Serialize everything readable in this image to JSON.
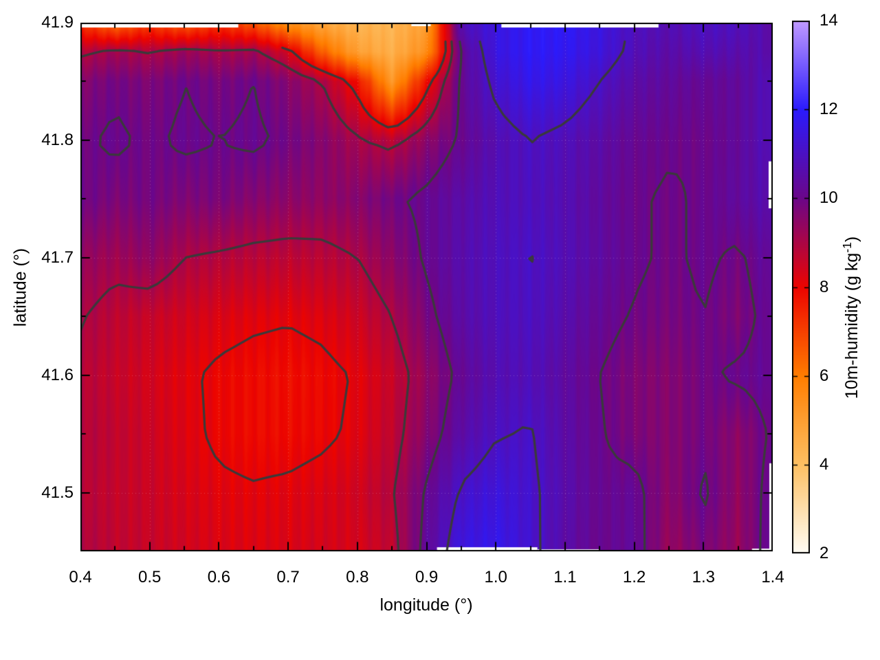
{
  "figure": {
    "background": "#ffffff",
    "border_color": "#000000"
  },
  "chart_data": {
    "type": "heatmap",
    "title": "",
    "xlabel": "longitude (°)",
    "ylabel": "latitude (°)",
    "colorbar_label": "10m-humidity (g kg^-1)",
    "colorbar_label_prefix": "10m-humidity (g kg",
    "colorbar_label_sup": "-1",
    "colorbar_label_suffix": ")",
    "x_range": [
      0.4,
      1.4
    ],
    "y_range": [
      41.45,
      41.9
    ],
    "c_range": [
      2,
      14
    ],
    "x_major_ticks": [
      0.4,
      0.5,
      0.6,
      0.7,
      0.8,
      0.9,
      1.0,
      1.1,
      1.2,
      1.3,
      1.4
    ],
    "x_tick_labels": [
      "0.4",
      "0.5",
      "0.6",
      "0.7",
      "0.8",
      "0.9",
      "1.0",
      "1.1",
      "1.2",
      "1.3",
      "1.4"
    ],
    "x_minor_ticks": [
      0.45,
      0.55,
      0.65,
      0.75,
      0.85,
      0.95,
      1.05,
      1.15,
      1.25,
      1.35
    ],
    "y_major_ticks": [
      41.5,
      41.6,
      41.7,
      41.8,
      41.9
    ],
    "y_tick_labels": [
      "41.5",
      "41.6",
      "41.7",
      "41.8",
      "41.9"
    ],
    "y_minor_ticks": [
      41.45,
      41.55,
      41.65,
      41.75,
      41.85
    ],
    "cb_major_ticks": [
      2,
      4,
      6,
      8,
      10,
      12,
      14
    ],
    "cb_tick_labels": [
      "2",
      "4",
      "6",
      "8",
      "10",
      "12",
      "14"
    ],
    "cb_dash_ticks": [
      4,
      6,
      8,
      10,
      12
    ],
    "grid_on": true,
    "legend_position": "none",
    "palette": [
      {
        "v": 2,
        "c": "#fffdf6"
      },
      {
        "v": 4,
        "c": "#fdc063"
      },
      {
        "v": 6,
        "c": "#ff7d00"
      },
      {
        "v": 8,
        "c": "#ec0400"
      },
      {
        "v": 10,
        "c": "#6b0689"
      },
      {
        "v": 12,
        "c": "#2b1bfc"
      },
      {
        "v": 14,
        "c": "#c09aff"
      }
    ],
    "contour_levels": [
      8.1,
      9,
      10,
      11
    ],
    "contour_color": "#3a3a3a",
    "contour_clips": [
      {
        "lat_min": 41.886
      },
      {
        "lat_min": 41.878,
        "lon_max": 0.7
      }
    ],
    "stripes": {
      "amp1": 0.13,
      "period1": 21,
      "amp2": 0.05,
      "period2": 9.3
    },
    "grid": {
      "lons": [
        0.4,
        0.45,
        0.5,
        0.55,
        0.6,
        0.65,
        0.7,
        0.75,
        0.8,
        0.85,
        0.9,
        0.95,
        1.0,
        1.05,
        1.1,
        1.15,
        1.2,
        1.25,
        1.3,
        1.35,
        1.4
      ],
      "lats": [
        41.9,
        41.875,
        41.85,
        41.8,
        41.75,
        41.7,
        41.65,
        41.6,
        41.55,
        41.5,
        41.45
      ],
      "values": [
        [
          7.2,
          6.1,
          7.0,
          6.4,
          7.1,
          6.6,
          5.4,
          4.7,
          4.35,
          4.3,
          5.0,
          10.8,
          11.5,
          11.9,
          11.9,
          11.5,
          10.9,
          10.7,
          11.0,
          10.9,
          10.5
        ],
        [
          8.9,
          9.2,
          9.0,
          9.3,
          9.1,
          9.2,
          8.4,
          6.5,
          5.0,
          4.5,
          5.5,
          10.2,
          11.5,
          11.9,
          11.8,
          11.4,
          10.8,
          10.5,
          10.7,
          10.6,
          10.6
        ],
        [
          9.6,
          9.9,
          9.7,
          10.0,
          9.8,
          10.0,
          9.6,
          9.0,
          7.8,
          5.2,
          7.8,
          10.2,
          11.2,
          11.7,
          11.5,
          11.0,
          10.5,
          10.3,
          10.2,
          10.3,
          10.9
        ],
        [
          9.9,
          10.1,
          9.9,
          10.1,
          10.0,
          10.1,
          9.9,
          9.6,
          9.1,
          8.8,
          9.5,
          10.1,
          10.7,
          11.0,
          10.8,
          10.5,
          10.15,
          10.05,
          10.0,
          10.3,
          10.9
        ],
        [
          10.0,
          9.75,
          9.9,
          9.7,
          9.8,
          9.6,
          9.5,
          9.45,
          9.6,
          9.9,
          10.15,
          10.5,
          10.8,
          10.9,
          10.7,
          10.35,
          10.05,
          9.95,
          10.05,
          10.35,
          10.7
        ],
        [
          9.4,
          9.2,
          9.45,
          9.0,
          8.9,
          8.8,
          8.75,
          8.8,
          9.0,
          9.5,
          10.1,
          10.6,
          10.9,
          11.02,
          10.75,
          10.4,
          10.1,
          9.9,
          10.1,
          9.9,
          10.4
        ],
        [
          9.05,
          8.75,
          8.6,
          8.45,
          8.3,
          8.2,
          8.15,
          8.25,
          8.5,
          9.0,
          9.8,
          10.5,
          10.85,
          10.95,
          10.6,
          10.2,
          9.95,
          9.8,
          10.0,
          9.7,
          10.3
        ],
        [
          8.85,
          8.6,
          8.4,
          8.2,
          8.0,
          7.9,
          7.85,
          7.95,
          8.15,
          8.6,
          9.4,
          10.2,
          10.7,
          10.8,
          10.4,
          10.0,
          9.7,
          9.6,
          9.9,
          10.1,
          10.25
        ],
        [
          8.9,
          8.7,
          8.5,
          8.25,
          8.0,
          7.9,
          7.9,
          8.0,
          8.2,
          8.7,
          9.6,
          10.5,
          10.95,
          11.05,
          10.5,
          10.05,
          9.75,
          9.6,
          9.9,
          9.5,
          10.1
        ],
        [
          8.85,
          8.65,
          8.55,
          8.35,
          8.2,
          8.15,
          8.2,
          8.3,
          8.45,
          8.9,
          10.1,
          11.1,
          11.4,
          11.15,
          10.6,
          10.1,
          10.2,
          9.5,
          10.1,
          9.4,
          10.3
        ],
        [
          9.0,
          8.7,
          8.6,
          8.45,
          8.3,
          8.25,
          8.3,
          8.4,
          8.35,
          8.7,
          10.3,
          11.5,
          11.7,
          11.2,
          10.5,
          10.05,
          10.3,
          9.3,
          9.8,
          9.3,
          10.4
        ]
      ]
    },
    "missing_data_gaps": [
      {
        "edge": "top",
        "from": 0.402,
        "to": 0.628,
        "thickness": 7
      },
      {
        "edge": "top",
        "from": 0.878,
        "to": 0.906,
        "thickness": 5
      },
      {
        "edge": "top",
        "from": 1.008,
        "to": 1.235,
        "thickness": 7
      },
      {
        "edge": "bottom",
        "from": 0.915,
        "to": 1.06,
        "thickness": 6
      },
      {
        "edge": "bottom",
        "from": 1.06,
        "to": 1.15,
        "thickness": 3
      },
      {
        "edge": "bottom",
        "from": 1.37,
        "to": 1.4,
        "thickness": 4
      },
      {
        "edge": "right",
        "from": 41.742,
        "to": 41.782,
        "thickness": 6
      },
      {
        "edge": "right",
        "from": 41.45,
        "to": 41.525,
        "thickness": 5
      }
    ]
  }
}
